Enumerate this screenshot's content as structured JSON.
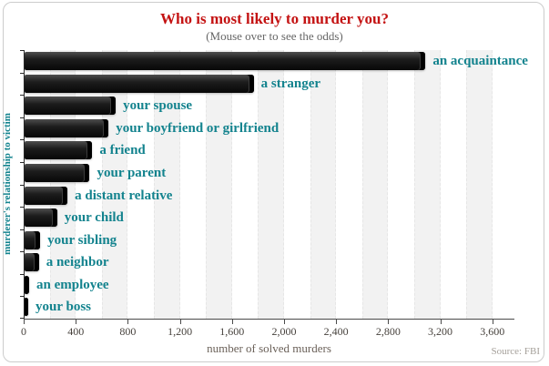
{
  "colors": {
    "title": "#c41313",
    "subtitle": "#666666",
    "bar_label": "#13838e",
    "tick_label": "#46413c",
    "axis_title": "#6b6159",
    "source": "#a5a09a",
    "stripe": "#f2f2f2",
    "bar": "#111111"
  },
  "source_note": "Source: FBI",
  "chart_data": {
    "type": "bar",
    "orientation": "horizontal",
    "title": "Who is most likely to murder you?",
    "subtitle": "(Mouse over to see the odds)",
    "xlabel": "number of solved murders",
    "ylabel": "murderer's relationship to victim",
    "categories": [
      "an acquaintance",
      "a stranger",
      "your spouse",
      "your boyfriend or girlfriend",
      "a friend",
      "your parent",
      "a distant relative",
      "your child",
      "your sibling",
      "a neighbor",
      "an employee",
      "your boss"
    ],
    "values": [
      3080,
      1760,
      700,
      645,
      520,
      500,
      330,
      250,
      120,
      110,
      35,
      28
    ],
    "xlim": [
      0,
      3770
    ],
    "xticks": [
      0,
      400,
      800,
      1200,
      1600,
      2000,
      2400,
      2800,
      3200,
      3600
    ],
    "xtick_labels": [
      "0",
      "400",
      "800",
      "1,200",
      "1,600",
      "2,000",
      "2,400",
      "2,800",
      "3,200",
      "3,600"
    ],
    "background_bands": "alternating gray bands every 200 units ending at each labeled tick",
    "legend": "none",
    "source": "Source: FBI"
  }
}
